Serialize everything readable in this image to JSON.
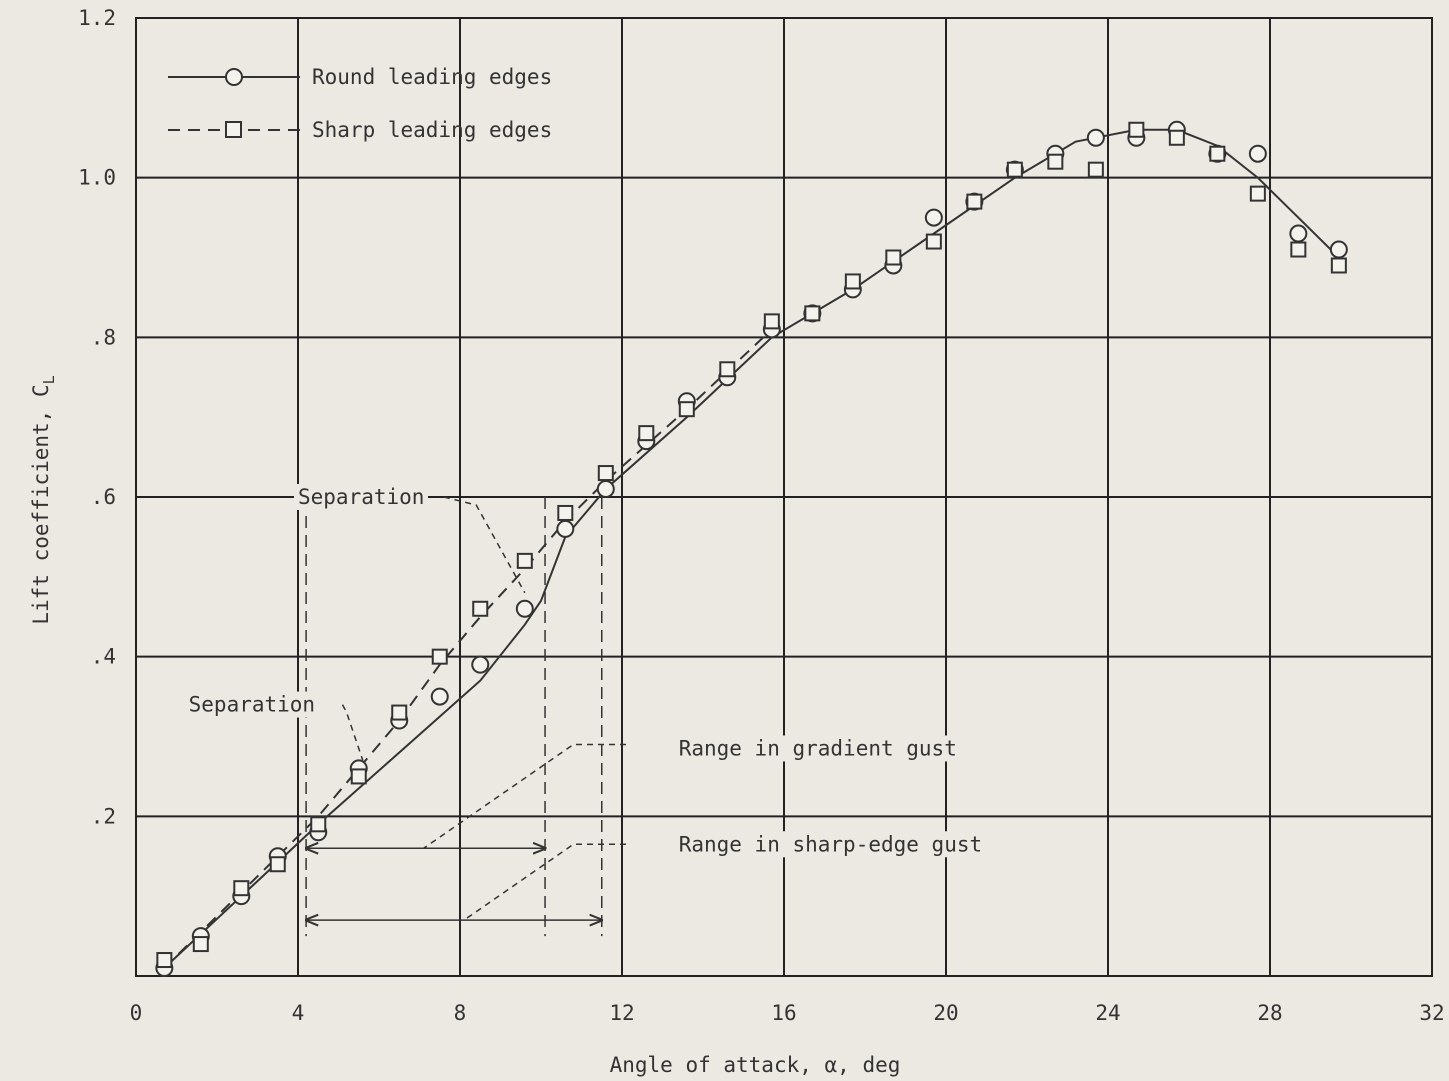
{
  "chart_data": {
    "type": "scatter",
    "xlabel": "Angle of attack, α, deg",
    "ylabel": "Lift coefficient, C",
    "ylabel_sub": "L",
    "xlim": [
      0,
      32
    ],
    "ylim": [
      0,
      1.2
    ],
    "xticks": [
      "0",
      "4",
      "8",
      "12",
      "16",
      "20",
      "24",
      "28",
      "32"
    ],
    "yticks": [
      ".2",
      ".4",
      ".6",
      ".8",
      "1.0",
      "1.2"
    ],
    "grid": true,
    "legend_position": "top-left",
    "series": [
      {
        "name": "Round leading edges",
        "marker": "circle",
        "line": "solid",
        "points": [
          [
            0.7,
            0.01
          ],
          [
            1.6,
            0.05
          ],
          [
            2.6,
            0.1
          ],
          [
            3.5,
            0.15
          ],
          [
            4.5,
            0.18
          ],
          [
            5.5,
            0.26
          ],
          [
            6.5,
            0.32
          ],
          [
            7.5,
            0.35
          ],
          [
            8.5,
            0.39
          ],
          [
            9.6,
            0.46
          ],
          [
            10.6,
            0.56
          ],
          [
            11.6,
            0.61
          ],
          [
            12.6,
            0.67
          ],
          [
            13.6,
            0.72
          ],
          [
            14.6,
            0.75
          ],
          [
            15.7,
            0.81
          ],
          [
            16.7,
            0.83
          ],
          [
            17.7,
            0.86
          ],
          [
            18.7,
            0.89
          ],
          [
            19.7,
            0.95
          ],
          [
            20.7,
            0.97
          ],
          [
            21.7,
            1.01
          ],
          [
            22.7,
            1.03
          ],
          [
            23.7,
            1.05
          ],
          [
            24.7,
            1.05
          ],
          [
            25.7,
            1.06
          ],
          [
            26.7,
            1.03
          ],
          [
            27.7,
            1.03
          ],
          [
            28.7,
            0.93
          ],
          [
            29.7,
            0.91
          ]
        ],
        "curve": [
          [
            0.7,
            0.01
          ],
          [
            2.6,
            0.1
          ],
          [
            4.5,
            0.19
          ],
          [
            6.5,
            0.28
          ],
          [
            8.5,
            0.37
          ],
          [
            9.6,
            0.44
          ],
          [
            10.0,
            0.47
          ],
          [
            10.6,
            0.55
          ],
          [
            11.6,
            0.61
          ],
          [
            13.6,
            0.7
          ],
          [
            15.7,
            0.8
          ],
          [
            17.7,
            0.86
          ],
          [
            19.7,
            0.93
          ],
          [
            21.7,
            1.0
          ],
          [
            23.2,
            1.045
          ],
          [
            24.7,
            1.06
          ],
          [
            25.7,
            1.06
          ],
          [
            26.7,
            1.04
          ],
          [
            27.7,
            1.0
          ],
          [
            28.7,
            0.95
          ],
          [
            29.7,
            0.9
          ]
        ]
      },
      {
        "name": "Sharp leading edges",
        "marker": "square",
        "line": "dashed",
        "points": [
          [
            0.7,
            0.02
          ],
          [
            1.6,
            0.04
          ],
          [
            2.6,
            0.11
          ],
          [
            3.5,
            0.14
          ],
          [
            4.5,
            0.19
          ],
          [
            5.5,
            0.25
          ],
          [
            6.5,
            0.33
          ],
          [
            7.5,
            0.4
          ],
          [
            8.5,
            0.46
          ],
          [
            9.6,
            0.52
          ],
          [
            10.6,
            0.58
          ],
          [
            11.6,
            0.63
          ],
          [
            12.6,
            0.68
          ],
          [
            13.6,
            0.71
          ],
          [
            14.6,
            0.76
          ],
          [
            15.7,
            0.82
          ],
          [
            16.7,
            0.83
          ],
          [
            17.7,
            0.87
          ],
          [
            18.7,
            0.9
          ],
          [
            19.7,
            0.92
          ],
          [
            20.7,
            0.97
          ],
          [
            21.7,
            1.01
          ],
          [
            22.7,
            1.02
          ],
          [
            23.7,
            1.01
          ],
          [
            24.7,
            1.06
          ],
          [
            25.7,
            1.05
          ],
          [
            26.7,
            1.03
          ],
          [
            27.7,
            0.98
          ],
          [
            28.7,
            0.91
          ],
          [
            29.7,
            0.89
          ]
        ],
        "curve": [
          [
            0.7,
            0.01
          ],
          [
            3.5,
            0.15
          ],
          [
            4.5,
            0.2
          ],
          [
            5.5,
            0.26
          ],
          [
            6.5,
            0.32
          ],
          [
            7.5,
            0.39
          ],
          [
            8.5,
            0.45
          ],
          [
            9.6,
            0.51
          ],
          [
            10.6,
            0.57
          ],
          [
            11.6,
            0.62
          ],
          [
            13.6,
            0.71
          ],
          [
            15.7,
            0.81
          ]
        ]
      }
    ],
    "annotations": [
      {
        "text": "Separation",
        "anchor": [
          4,
          0.6
        ],
        "leader": [
          [
            7.6,
            0.6
          ],
          [
            8.4,
            0.59
          ],
          [
            9.6,
            0.48
          ]
        ]
      },
      {
        "text": "Separation",
        "anchor": [
          1.3,
          0.34
        ],
        "leader": [
          [
            5.1,
            0.34
          ],
          [
            5.2,
            0.33
          ],
          [
            5.6,
            0.27
          ]
        ]
      },
      {
        "text": "Range in gradient gust",
        "anchor": [
          13.4,
          0.285
        ],
        "leader": [
          [
            12.1,
            0.29
          ],
          [
            10.8,
            0.29
          ],
          [
            7.1,
            0.16
          ]
        ],
        "range": [
          4.2,
          10.1
        ],
        "range_y": 0.16
      },
      {
        "text": "Range in sharp-edge gust",
        "anchor": [
          13.4,
          0.165
        ],
        "leader": [
          [
            12.1,
            0.165
          ],
          [
            10.8,
            0.165
          ],
          [
            8.1,
            0.07
          ]
        ],
        "range": [
          4.2,
          11.5
        ],
        "range_y": 0.07
      }
    ],
    "vertical_markers": [
      4.2,
      10.1,
      11.5
    ]
  }
}
